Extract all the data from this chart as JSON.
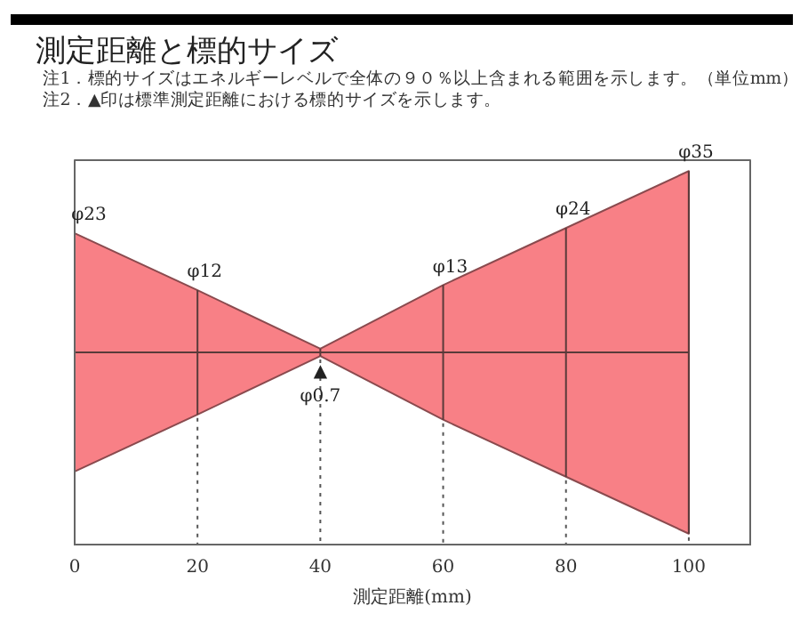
{
  "chart_data": {
    "type": "area",
    "title": "測定距離と標的サイズ",
    "subtitle": "注1．標的サイズはエネルギーレベルで全体の９０％以上含まれる範囲を示します。（単位mm）",
    "xlabel": "測定距離(mm)",
    "x": [
      0,
      20,
      40,
      60,
      80,
      100
    ],
    "values": [
      23,
      12,
      0.7,
      13,
      24,
      35
    ],
    "value_labels": [
      "φ23",
      "φ12",
      "φ0.7",
      "φ13",
      "φ24",
      "φ35"
    ],
    "color": "#f88086",
    "xlim": [
      0,
      110
    ],
    "xticks": [
      0,
      20,
      40,
      60,
      80,
      100
    ],
    "grid": "x",
    "annotations": [
      "注2．▲印は標準測定距離における標的サイズを示します。",
      {
        "text": "▲",
        "x": 40
      }
    ]
  }
}
